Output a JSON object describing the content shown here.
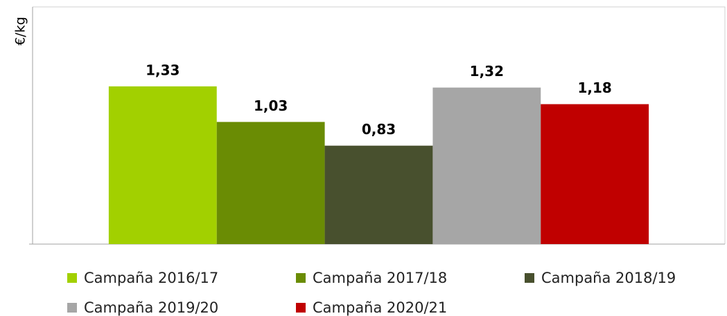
{
  "chart_data": {
    "type": "bar",
    "y_label": "€/kg",
    "categories": [
      null
    ],
    "series": [
      {
        "name": "Campaña 2016/17",
        "color": "#a2d000",
        "values": [
          1.33
        ],
        "value_labels": [
          "1,33"
        ]
      },
      {
        "name": "Campaña 2017/18",
        "color": "#6a8c04",
        "values": [
          1.03
        ],
        "value_labels": [
          "1,03"
        ]
      },
      {
        "name": "Campaña 2018/19",
        "color": "#48502e",
        "values": [
          0.83
        ],
        "value_labels": [
          "0,83"
        ]
      },
      {
        "name": "Campaña 2019/20",
        "color": "#a6a6a6",
        "values": [
          1.32
        ],
        "value_labels": [
          "1,32"
        ]
      },
      {
        "name": "Campaña 2020/21",
        "color": "#c00000",
        "values": [
          1.18
        ],
        "value_labels": [
          "1,18"
        ]
      }
    ],
    "ylim": [
      0,
      2
    ],
    "legend": "bottom"
  }
}
